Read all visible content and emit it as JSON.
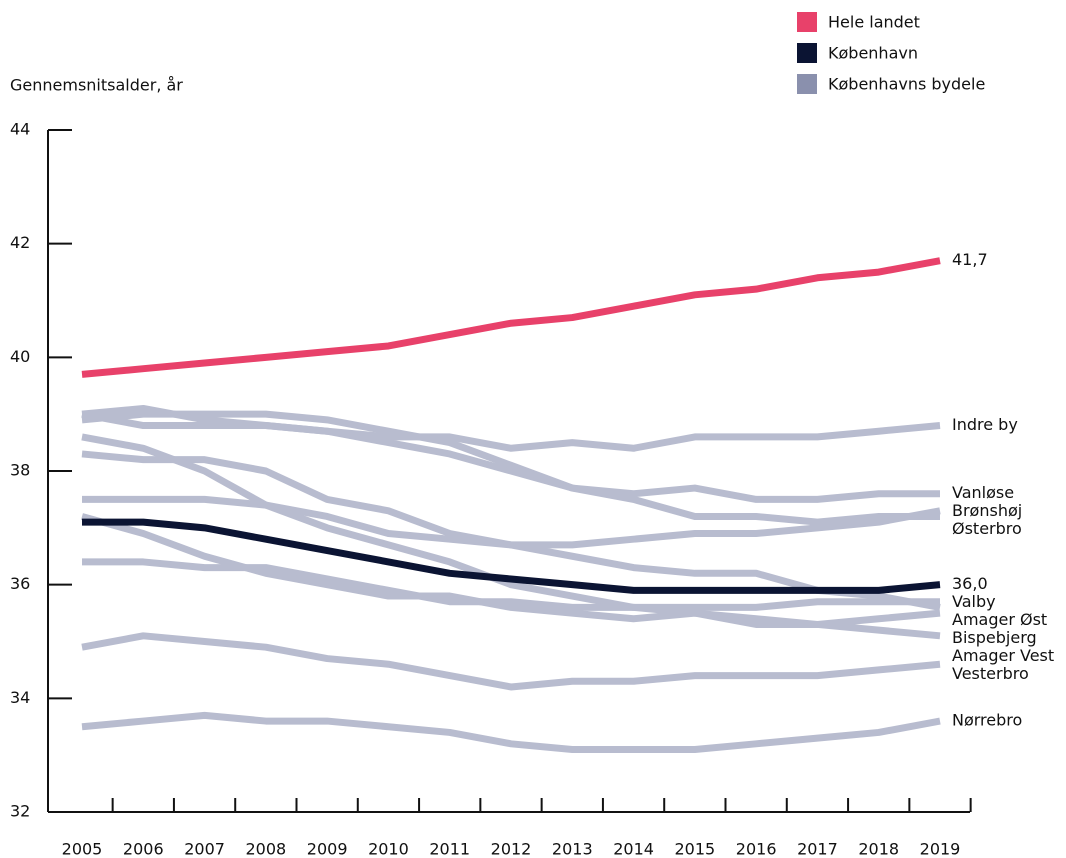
{
  "chart_data": {
    "type": "line",
    "y_label": "Gennemsnitsalder, år",
    "x": [
      2005,
      2006,
      2007,
      2008,
      2009,
      2010,
      2011,
      2012,
      2013,
      2014,
      2015,
      2016,
      2017,
      2018,
      2019
    ],
    "xlim": [
      2005,
      2019
    ],
    "ylim": [
      32,
      44
    ],
    "yticks": [
      32,
      34,
      36,
      38,
      40,
      42,
      44
    ],
    "group_label": "Københavns bydele",
    "group_color": "#8a90ad",
    "series": [
      {
        "name": "Indre by",
        "color": "#b8bccf",
        "values": [
          39.0,
          38.8,
          38.8,
          38.8,
          38.7,
          38.6,
          38.6,
          38.4,
          38.5,
          38.4,
          38.6,
          38.6,
          38.6,
          38.7,
          38.8
        ]
      },
      {
        "name": "Vanløse",
        "color": "#b8bccf",
        "values": [
          39.0,
          39.1,
          38.9,
          38.8,
          38.7,
          38.5,
          38.3,
          38.0,
          37.7,
          37.6,
          37.7,
          37.5,
          37.5,
          37.6,
          37.6
        ]
      },
      {
        "name": "Brønshøj",
        "color": "#b8bccf",
        "values": [
          37.5,
          37.5,
          37.5,
          37.4,
          37.2,
          36.9,
          36.8,
          36.7,
          36.7,
          36.8,
          36.9,
          36.9,
          37.0,
          37.1,
          37.3
        ]
      },
      {
        "name": "Østerbro",
        "color": "#b8bccf",
        "values": [
          38.9,
          39.0,
          39.0,
          39.0,
          38.9,
          38.7,
          38.5,
          38.1,
          37.7,
          37.5,
          37.2,
          37.2,
          37.1,
          37.2,
          37.2
        ]
      },
      {
        "name": "Valby",
        "color": "#b8bccf",
        "values": [
          36.4,
          36.4,
          36.3,
          36.3,
          36.1,
          35.9,
          35.7,
          35.7,
          35.6,
          35.6,
          35.6,
          35.6,
          35.7,
          35.7,
          35.7
        ]
      },
      {
        "name": "Amager Øst",
        "color": "#b8bccf",
        "values": [
          38.3,
          38.2,
          38.2,
          38.0,
          37.5,
          37.3,
          36.9,
          36.7,
          36.5,
          36.3,
          36.2,
          36.2,
          35.9,
          35.8,
          35.6
        ]
      },
      {
        "name": "Amager Vest",
        "color": "#b8bccf",
        "values": [
          38.6,
          38.4,
          38.0,
          37.4,
          37.0,
          36.7,
          36.4,
          36.0,
          35.8,
          35.6,
          35.5,
          35.4,
          35.3,
          35.2,
          35.1
        ]
      },
      {
        "name": "Bispebjerg",
        "color": "#b8bccf",
        "values": [
          37.2,
          36.9,
          36.5,
          36.2,
          36.0,
          35.8,
          35.8,
          35.6,
          35.5,
          35.4,
          35.5,
          35.3,
          35.3,
          35.4,
          35.5
        ]
      },
      {
        "name": "Vesterbro",
        "color": "#b8bccf",
        "values": [
          34.9,
          35.1,
          35.0,
          34.9,
          34.7,
          34.6,
          34.4,
          34.2,
          34.3,
          34.3,
          34.4,
          34.4,
          34.4,
          34.5,
          34.6
        ]
      },
      {
        "name": "Nørrebro",
        "color": "#b8bccf",
        "values": [
          33.5,
          33.6,
          33.7,
          33.6,
          33.6,
          33.5,
          33.4,
          33.2,
          33.1,
          33.1,
          33.1,
          33.2,
          33.3,
          33.4,
          33.6
        ]
      },
      {
        "name": "København",
        "color": "#0b1433",
        "values": [
          37.1,
          37.1,
          37.0,
          36.8,
          36.6,
          36.4,
          36.2,
          36.1,
          36.0,
          35.9,
          35.9,
          35.9,
          35.9,
          35.9,
          36.0
        ],
        "value_labels": {
          "14": "36,0"
        }
      },
      {
        "name": "Hele landet",
        "color": "#e8416a",
        "values": [
          39.7,
          39.8,
          39.9,
          40.0,
          40.1,
          40.2,
          40.4,
          40.6,
          40.7,
          40.9,
          41.1,
          41.2,
          41.4,
          41.5,
          41.7
        ],
        "value_labels": {
          "14": "41,7"
        }
      }
    ]
  }
}
